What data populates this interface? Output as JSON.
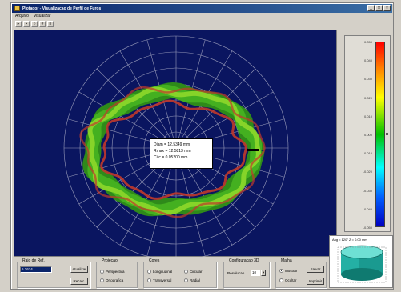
{
  "window": {
    "title": "Plotador - Visualizacao de Perfil de Furos",
    "minimize": "_",
    "maximize": "□",
    "close": "×"
  },
  "menu": [
    "Arquivo",
    "Visualizar"
  ],
  "toolbar": [
    "open",
    "save",
    "zoom",
    "grid",
    "print"
  ],
  "plot": {
    "background": "#0a1560",
    "info": {
      "line1": "Diam = 12.5349 mm",
      "line2": "Rmax = 12.5813 mm",
      "line3": "Circ = 0.05200 mm"
    }
  },
  "colorbar": {
    "ticks": [
      "0.050",
      "0.040",
      "0.030",
      "0.020",
      "0.010",
      "0.000",
      "-0.010",
      "-0.020",
      "-0.030",
      "-0.040",
      "-0.050"
    ]
  },
  "cylinder": {
    "label": "Ang = 120°  Z = 0.00 mm"
  },
  "controls": {
    "group1": {
      "label": "Raio de Ref.",
      "value": "6.2674",
      "btn1": "Atualizar",
      "btn2": "Recalc."
    },
    "group2": {
      "label": "Projecao",
      "opt1": "Perspectiva",
      "opt2": "Ortografica"
    },
    "group3": {
      "label": "Cores",
      "opt1": "Longitudinal",
      "opt2": "Circular",
      "opt3": "Transversal",
      "opt4": "Radial"
    },
    "group4": {
      "label": "Configuracao 3D",
      "sub": "Resolucao",
      "value": "10"
    },
    "group5": {
      "label": "Malha",
      "opt1": "Mostrar",
      "opt2": "Ocultar",
      "btn1": "Salvar",
      "btn2": "Imprimir"
    }
  }
}
